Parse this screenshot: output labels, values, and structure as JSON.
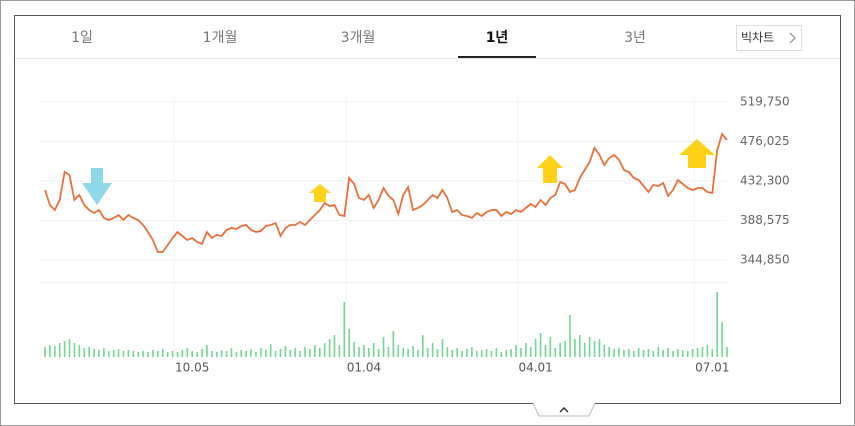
{
  "tabs": [
    "1일",
    "1개월",
    "3개월",
    "1년",
    "3년"
  ],
  "active_tab_index": 3,
  "button": "빅차트",
  "chart_data": [
    {
      "type": "line",
      "color": "#e8703a",
      "grid": true,
      "xlim": [
        0,
        139
      ],
      "xticks": [
        {
          "value": 30,
          "label": "10.05"
        },
        {
          "value": 65,
          "label": "01.04"
        },
        {
          "value": 100,
          "label": "04.01"
        },
        {
          "value": 136,
          "label": "07.01"
        }
      ],
      "ylim": [
        344850,
        519750
      ],
      "yticks": [
        {
          "value": 344850,
          "label": "344,850"
        },
        {
          "value": 388575,
          "label": "388,575"
        },
        {
          "value": 432300,
          "label": "432,300"
        },
        {
          "value": 476025,
          "label": "476,025"
        },
        {
          "value": 519750,
          "label": "519,750"
        }
      ],
      "values": [
        422300,
        405700,
        400200,
        411300,
        442300,
        438900,
        411300,
        416800,
        405700,
        400200,
        396900,
        400200,
        391300,
        389100,
        391300,
        394700,
        389100,
        394700,
        391300,
        389100,
        383600,
        375800,
        367000,
        353700,
        353700,
        361400,
        369200,
        375800,
        371400,
        367000,
        369200,
        364800,
        362600,
        375800,
        369200,
        372500,
        371400,
        378100,
        380300,
        379200,
        382500,
        383600,
        378100,
        375800,
        376900,
        382500,
        383600,
        385800,
        371400,
        380300,
        383600,
        383600,
        386900,
        383600,
        389100,
        394700,
        400200,
        407900,
        404600,
        405700,
        394700,
        393600,
        435600,
        429000,
        413500,
        411300,
        416800,
        402400,
        411300,
        424500,
        415700,
        411300,
        395800,
        416800,
        425700,
        400200,
        402400,
        405700,
        411300,
        416800,
        413500,
        422300,
        413500,
        398000,
        400200,
        394700,
        393600,
        391300,
        396900,
        393600,
        398000,
        400200,
        400200,
        393600,
        398000,
        395800,
        400200,
        398000,
        402400,
        406800,
        403500,
        411300,
        405700,
        413500,
        416800,
        431200,
        429000,
        420100,
        422300,
        435600,
        444500,
        453300,
        468800,
        461100,
        450000,
        457800,
        461100,
        455500,
        444500,
        442300,
        435600,
        433400,
        426800,
        420100,
        427900,
        426800,
        430100,
        415700,
        422300,
        433400,
        429000,
        424500,
        422300,
        424500,
        424500,
        420100,
        419000,
        466600,
        484300,
        477700
      ]
    },
    {
      "type": "bar",
      "color": "#74d595",
      "values": [
        10,
        12,
        11,
        14,
        16,
        18,
        14,
        12,
        9,
        10,
        8,
        7,
        9,
        6,
        7,
        8,
        6,
        7,
        6,
        5,
        6,
        5,
        7,
        6,
        8,
        5,
        6,
        5,
        7,
        9,
        6,
        5,
        8,
        12,
        6,
        5,
        7,
        6,
        9,
        5,
        7,
        6,
        8,
        5,
        9,
        7,
        13,
        6,
        8,
        11,
        7,
        9,
        6,
        10,
        8,
        12,
        9,
        14,
        18,
        22,
        12,
        55,
        28,
        15,
        10,
        12,
        9,
        14,
        8,
        20,
        10,
        26,
        12,
        9,
        8,
        11,
        7,
        22,
        9,
        14,
        8,
        18,
        10,
        7,
        9,
        6,
        8,
        10,
        6,
        7,
        8,
        6,
        9,
        5,
        7,
        8,
        12,
        9,
        14,
        10,
        18,
        24,
        12,
        20,
        9,
        14,
        16,
        42,
        18,
        22,
        14,
        20,
        16,
        18,
        12,
        10,
        8,
        9,
        7,
        8,
        6,
        9,
        7,
        8,
        6,
        10,
        7,
        9,
        6,
        8,
        7,
        6,
        8,
        9,
        10,
        12,
        8,
        65,
        35,
        10
      ]
    }
  ]
}
